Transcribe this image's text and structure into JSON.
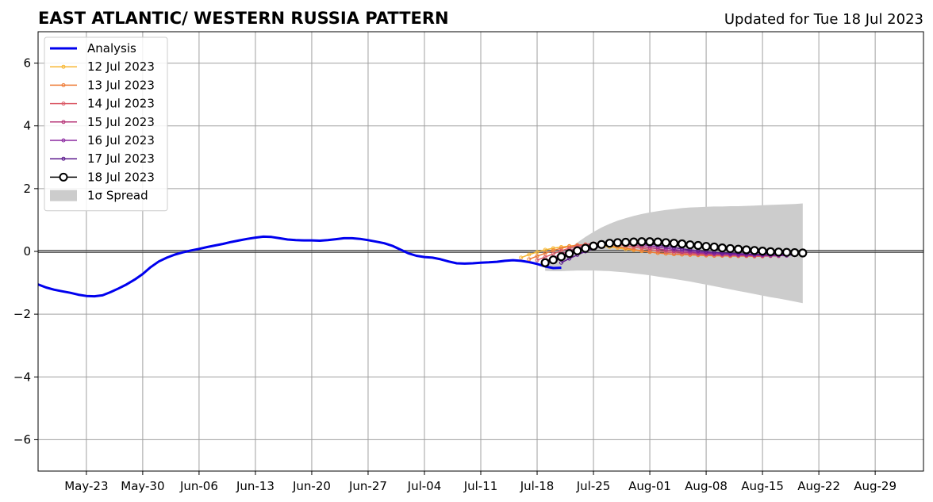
{
  "header": {
    "title": "EAST ATLANTIC/ WESTERN RUSSIA PATTERN",
    "updated": "Updated for Tue 18 Jul 2023"
  },
  "chart_data": {
    "type": "line",
    "title": "EAST ATLANTIC/ WESTERN RUSSIA PATTERN",
    "subtitle": "Updated for Tue 18 Jul 2023",
    "xlabel": "",
    "ylabel": "",
    "x_axis": {
      "type": "date",
      "range": [
        "2023-05-17",
        "2023-09-04"
      ],
      "ticks": [
        {
          "date": "2023-05-23",
          "label": "May-23"
        },
        {
          "date": "2023-05-30",
          "label": "May-30"
        },
        {
          "date": "2023-06-06",
          "label": "Jun-06"
        },
        {
          "date": "2023-06-13",
          "label": "Jun-13"
        },
        {
          "date": "2023-06-20",
          "label": "Jun-20"
        },
        {
          "date": "2023-06-27",
          "label": "Jun-27"
        },
        {
          "date": "2023-07-04",
          "label": "Jul-04"
        },
        {
          "date": "2023-07-11",
          "label": "Jul-11"
        },
        {
          "date": "2023-07-18",
          "label": "Jul-18"
        },
        {
          "date": "2023-07-25",
          "label": "Jul-25"
        },
        {
          "date": "2023-08-01",
          "label": "Aug-01"
        },
        {
          "date": "2023-08-08",
          "label": "Aug-08"
        },
        {
          "date": "2023-08-15",
          "label": "Aug-15"
        },
        {
          "date": "2023-08-22",
          "label": "Aug-22"
        },
        {
          "date": "2023-08-29",
          "label": "Aug-29"
        }
      ]
    },
    "y_axis": {
      "range": [
        -7,
        7
      ],
      "ticks": [
        {
          "value": -6,
          "label": "−6"
        },
        {
          "value": -4,
          "label": "−4"
        },
        {
          "value": -2,
          "label": "−2"
        },
        {
          "value": 0,
          "label": "0"
        },
        {
          "value": 2,
          "label": "2"
        },
        {
          "value": 4,
          "label": "4"
        },
        {
          "value": 6,
          "label": "6"
        }
      ]
    },
    "grid": true,
    "zero_line": true,
    "legend": {
      "placement": "top-left"
    },
    "analysis": {
      "name": "Analysis",
      "color": "#0000ee",
      "points": [
        [
          "2023-05-17",
          -1.05
        ],
        [
          "2023-05-18",
          -1.15
        ],
        [
          "2023-05-19",
          -1.22
        ],
        [
          "2023-05-20",
          -1.27
        ],
        [
          "2023-05-21",
          -1.32
        ],
        [
          "2023-05-22",
          -1.38
        ],
        [
          "2023-05-23",
          -1.42
        ],
        [
          "2023-05-24",
          -1.43
        ],
        [
          "2023-05-25",
          -1.4
        ],
        [
          "2023-05-26",
          -1.3
        ],
        [
          "2023-05-27",
          -1.18
        ],
        [
          "2023-05-28",
          -1.05
        ],
        [
          "2023-05-29",
          -0.9
        ],
        [
          "2023-05-30",
          -0.72
        ],
        [
          "2023-05-31",
          -0.5
        ],
        [
          "2023-06-01",
          -0.32
        ],
        [
          "2023-06-02",
          -0.2
        ],
        [
          "2023-06-03",
          -0.1
        ],
        [
          "2023-06-04",
          -0.03
        ],
        [
          "2023-06-05",
          0.03
        ],
        [
          "2023-06-06",
          0.08
        ],
        [
          "2023-06-07",
          0.14
        ],
        [
          "2023-06-08",
          0.19
        ],
        [
          "2023-06-09",
          0.24
        ],
        [
          "2023-06-10",
          0.3
        ],
        [
          "2023-06-11",
          0.35
        ],
        [
          "2023-06-12",
          0.4
        ],
        [
          "2023-06-13",
          0.44
        ],
        [
          "2023-06-14",
          0.47
        ],
        [
          "2023-06-15",
          0.46
        ],
        [
          "2023-06-16",
          0.42
        ],
        [
          "2023-06-17",
          0.38
        ],
        [
          "2023-06-18",
          0.36
        ],
        [
          "2023-06-19",
          0.35
        ],
        [
          "2023-06-20",
          0.35
        ],
        [
          "2023-06-21",
          0.34
        ],
        [
          "2023-06-22",
          0.36
        ],
        [
          "2023-06-23",
          0.39
        ],
        [
          "2023-06-24",
          0.42
        ],
        [
          "2023-06-25",
          0.42
        ],
        [
          "2023-06-26",
          0.4
        ],
        [
          "2023-06-27",
          0.36
        ],
        [
          "2023-06-28",
          0.31
        ],
        [
          "2023-06-29",
          0.26
        ],
        [
          "2023-06-30",
          0.18
        ],
        [
          "2023-07-01",
          0.06
        ],
        [
          "2023-07-02",
          -0.06
        ],
        [
          "2023-07-03",
          -0.14
        ],
        [
          "2023-07-04",
          -0.18
        ],
        [
          "2023-07-05",
          -0.2
        ],
        [
          "2023-07-06",
          -0.25
        ],
        [
          "2023-07-07",
          -0.32
        ],
        [
          "2023-07-08",
          -0.38
        ],
        [
          "2023-07-09",
          -0.39
        ],
        [
          "2023-07-10",
          -0.38
        ],
        [
          "2023-07-11",
          -0.36
        ],
        [
          "2023-07-12",
          -0.35
        ],
        [
          "2023-07-13",
          -0.33
        ],
        [
          "2023-07-14",
          -0.3
        ],
        [
          "2023-07-15",
          -0.28
        ],
        [
          "2023-07-16",
          -0.3
        ],
        [
          "2023-07-17",
          -0.34
        ],
        [
          "2023-07-18",
          -0.4
        ],
        [
          "2023-07-19",
          -0.48
        ],
        [
          "2023-07-20",
          -0.53
        ],
        [
          "2023-07-21",
          -0.52
        ]
      ]
    },
    "forecasts": [
      {
        "name": "12 Jul 2023",
        "color": "#f7b733",
        "start": "2023-07-16",
        "values": [
          -0.2,
          -0.1,
          -0.02,
          0.05,
          0.1,
          0.14,
          0.17,
          0.19,
          0.2,
          0.19,
          0.17,
          0.14,
          0.11,
          0.07,
          0.04,
          0.01,
          -0.02,
          -0.05,
          -0.07,
          -0.09,
          -0.1,
          -0.11,
          -0.12,
          -0.13,
          -0.14,
          -0.14,
          -0.15,
          -0.15,
          -0.15,
          -0.16
        ]
      },
      {
        "name": "13 Jul 2023",
        "color": "#ee7b36",
        "start": "2023-07-17",
        "values": [
          -0.25,
          -0.15,
          -0.06,
          0.03,
          0.1,
          0.16,
          0.2,
          0.22,
          0.23,
          0.22,
          0.19,
          0.15,
          0.11,
          0.06,
          0.02,
          -0.02,
          -0.05,
          -0.07,
          -0.09,
          -0.1,
          -0.11,
          -0.12,
          -0.13,
          -0.14,
          -0.14,
          -0.15,
          -0.15,
          -0.15,
          -0.16,
          -0.16
        ]
      },
      {
        "name": "14 Jul 2023",
        "color": "#db5c68",
        "start": "2023-07-18",
        "values": [
          -0.28,
          -0.18,
          -0.08,
          0.02,
          0.1,
          0.17,
          0.22,
          0.25,
          0.26,
          0.25,
          0.22,
          0.18,
          0.14,
          0.1,
          0.06,
          0.02,
          -0.01,
          -0.04,
          -0.06,
          -0.08,
          -0.09,
          -0.1,
          -0.11,
          -0.12,
          -0.13,
          -0.14,
          -0.14,
          -0.15,
          -0.15,
          -0.15
        ]
      },
      {
        "name": "15 Jul 2023",
        "color": "#b73779",
        "start": "2023-07-19",
        "values": [
          -0.32,
          -0.2,
          -0.09,
          0.02,
          0.11,
          0.18,
          0.23,
          0.26,
          0.27,
          0.26,
          0.23,
          0.2,
          0.16,
          0.12,
          0.08,
          0.04,
          0.01,
          -0.02,
          -0.04,
          -0.06,
          -0.08,
          -0.09,
          -0.1,
          -0.11,
          -0.12,
          -0.13,
          -0.13,
          -0.14,
          -0.14,
          -0.15
        ]
      },
      {
        "name": "16 Jul 2023",
        "color": "#8c29a0",
        "start": "2023-07-20",
        "values": [
          -0.34,
          -0.22,
          -0.1,
          0.01,
          0.1,
          0.17,
          0.23,
          0.26,
          0.27,
          0.27,
          0.25,
          0.22,
          0.18,
          0.14,
          0.1,
          0.06,
          0.03,
          0.0,
          -0.03,
          -0.05,
          -0.07,
          -0.08,
          -0.09,
          -0.1,
          -0.11,
          -0.12,
          -0.12,
          -0.13,
          -0.13,
          -0.14
        ]
      },
      {
        "name": "17 Jul 2023",
        "color": "#5c1a8e",
        "start": "2023-07-21",
        "values": [
          -0.36,
          -0.23,
          -0.11,
          0.0,
          0.09,
          0.17,
          0.22,
          0.26,
          0.28,
          0.28,
          0.26,
          0.23,
          0.2,
          0.16,
          0.12,
          0.08,
          0.05,
          0.02,
          -0.01,
          -0.03,
          -0.05,
          -0.06,
          -0.07,
          -0.08,
          -0.09,
          -0.1,
          -0.1,
          -0.11,
          -0.11,
          -0.12
        ]
      }
    ],
    "latest_forecast": {
      "name": "18 Jul 2023",
      "color": "#000000",
      "start": "2023-07-19",
      "values": [
        -0.36,
        -0.27,
        -0.17,
        -0.07,
        0.02,
        0.1,
        0.17,
        0.22,
        0.26,
        0.28,
        0.29,
        0.3,
        0.31,
        0.31,
        0.3,
        0.28,
        0.26,
        0.24,
        0.21,
        0.19,
        0.16,
        0.14,
        0.11,
        0.09,
        0.07,
        0.05,
        0.03,
        0.01,
        -0.01,
        -0.02,
        -0.03,
        -0.04,
        -0.05
      ]
    },
    "spread": {
      "name": "1σ Spread",
      "color": "#cccccc",
      "start": "2023-07-19",
      "upper": [
        -0.3,
        -0.18,
        -0.05,
        0.1,
        0.28,
        0.46,
        0.62,
        0.76,
        0.88,
        0.98,
        1.06,
        1.13,
        1.19,
        1.24,
        1.28,
        1.32,
        1.35,
        1.38,
        1.4,
        1.41,
        1.42,
        1.43,
        1.43,
        1.44,
        1.44,
        1.45,
        1.46,
        1.47,
        1.48,
        1.49,
        1.5,
        1.51,
        1.53
      ],
      "lower": [
        -0.62,
        -0.63,
        -0.63,
        -0.62,
        -0.61,
        -0.61,
        -0.61,
        -0.62,
        -0.63,
        -0.65,
        -0.67,
        -0.7,
        -0.73,
        -0.76,
        -0.8,
        -0.84,
        -0.88,
        -0.92,
        -0.96,
        -1.01,
        -1.06,
        -1.11,
        -1.16,
        -1.21,
        -1.26,
        -1.31,
        -1.36,
        -1.41,
        -1.46,
        -1.5,
        -1.55,
        -1.6,
        -1.65
      ]
    }
  }
}
